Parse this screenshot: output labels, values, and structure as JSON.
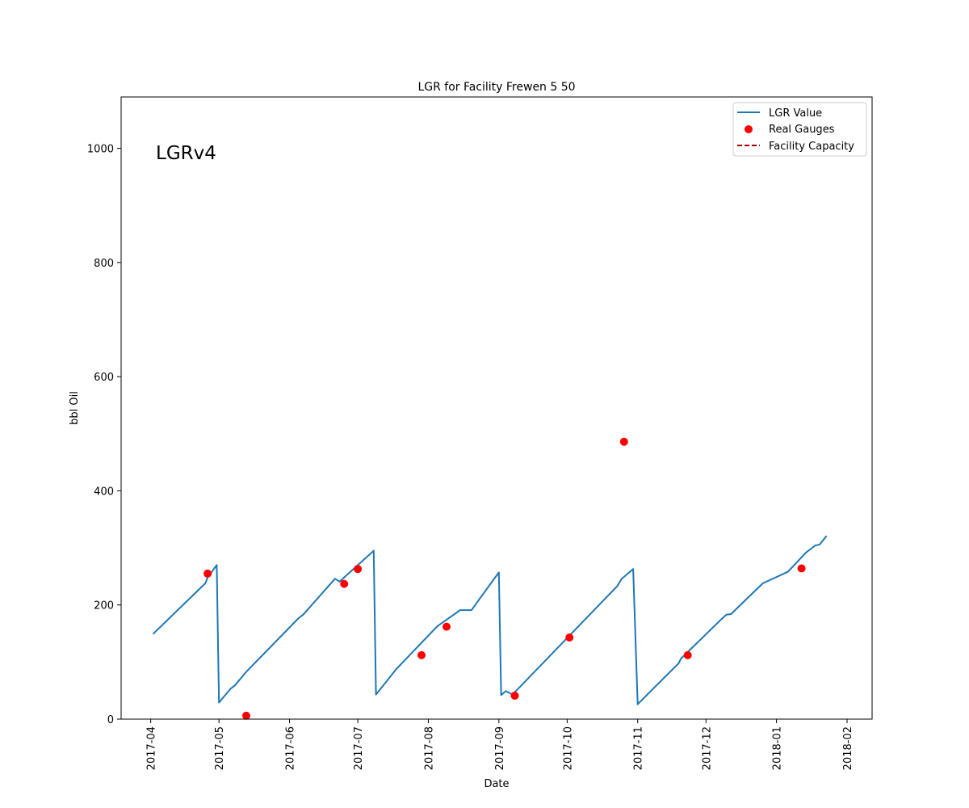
{
  "chart_data": {
    "type": "line",
    "title": "LGR for Facility Frewen 5 50",
    "xlabel": "Date",
    "ylabel": "bbl Oil",
    "annotation": "LGRv4",
    "xlim": [
      "2017-03-19",
      "2018-02-12"
    ],
    "ylim": [
      0,
      1090
    ],
    "grid": false,
    "legend_position": "top-right",
    "x_ticks": [
      "2017-04",
      "2017-05",
      "2017-06",
      "2017-07",
      "2017-08",
      "2017-09",
      "2017-10",
      "2017-11",
      "2017-12",
      "2018-01",
      "2018-02"
    ],
    "y_ticks": [
      0,
      200,
      400,
      600,
      800,
      1000
    ],
    "series": [
      {
        "name": "LGR Value",
        "kind": "line",
        "color": "#1f77b4",
        "points": [
          [
            "2017-04-02",
            149
          ],
          [
            "2017-04-25",
            238
          ],
          [
            "2017-04-26",
            248
          ],
          [
            "2017-04-30",
            270
          ],
          [
            "2017-05-01",
            29
          ],
          [
            "2017-05-06",
            53
          ],
          [
            "2017-05-08",
            59
          ],
          [
            "2017-05-13",
            83
          ],
          [
            "2017-06-05",
            177
          ],
          [
            "2017-06-07",
            183
          ],
          [
            "2017-06-21",
            246
          ],
          [
            "2017-06-23",
            241
          ],
          [
            "2017-07-08",
            295
          ],
          [
            "2017-07-09",
            43
          ],
          [
            "2017-07-14",
            68
          ],
          [
            "2017-07-18",
            88
          ],
          [
            "2017-08-05",
            163
          ],
          [
            "2017-08-15",
            191
          ],
          [
            "2017-08-20",
            191
          ],
          [
            "2017-08-23",
            208
          ],
          [
            "2017-09-01",
            257
          ],
          [
            "2017-09-02",
            42
          ],
          [
            "2017-09-04",
            49
          ],
          [
            "2017-09-07",
            43
          ],
          [
            "2017-10-23",
            233
          ],
          [
            "2017-10-25",
            246
          ],
          [
            "2017-10-30",
            263
          ],
          [
            "2017-11-01",
            26
          ],
          [
            "2017-11-19",
            98
          ],
          [
            "2017-11-20",
            106
          ],
          [
            "2017-12-08",
            176
          ],
          [
            "2017-12-10",
            183
          ],
          [
            "2017-12-12",
            184
          ],
          [
            "2017-12-26",
            238
          ],
          [
            "2018-01-06",
            258
          ],
          [
            "2018-01-14",
            292
          ],
          [
            "2018-01-16",
            298
          ],
          [
            "2018-01-18",
            304
          ],
          [
            "2018-01-20",
            306
          ],
          [
            "2018-01-23",
            321
          ]
        ]
      },
      {
        "name": "Real Gauges",
        "kind": "scatter",
        "color": "#ff0000",
        "points": [
          [
            "2017-04-26",
            255
          ],
          [
            "2017-05-13",
            6
          ],
          [
            "2017-06-25",
            237
          ],
          [
            "2017-07-01",
            263
          ],
          [
            "2017-07-29",
            112
          ],
          [
            "2017-08-09",
            162
          ],
          [
            "2017-09-08",
            41
          ],
          [
            "2017-10-02",
            143
          ],
          [
            "2017-10-26",
            486
          ],
          [
            "2017-11-23",
            112
          ],
          [
            "2018-01-12",
            264
          ]
        ]
      },
      {
        "name": "Facility Capacity",
        "kind": "dashed-line",
        "color": "#a00000",
        "points": []
      }
    ]
  }
}
